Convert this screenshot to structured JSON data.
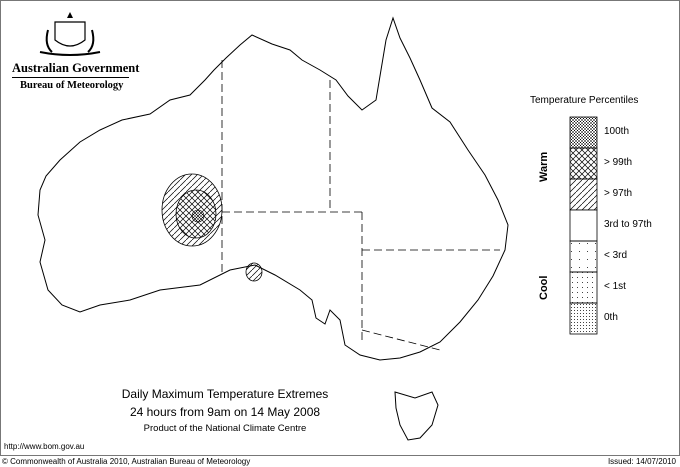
{
  "logo": {
    "line1": "Australian Government",
    "line2": "Bureau of Meteorology"
  },
  "legend": {
    "title": "Temperature Percentiles",
    "warm_label": "Warm",
    "cool_label": "Cool",
    "items": [
      {
        "label": "100th",
        "pattern": "dense-crosshatch"
      },
      {
        "label": "> 99th",
        "pattern": "crosshatch"
      },
      {
        "label": "> 97th",
        "pattern": "diagonal-hatch"
      },
      {
        "label": "3rd to 97th",
        "pattern": "blank"
      },
      {
        "label": "< 3rd",
        "pattern": "sparse-dots"
      },
      {
        "label": "< 1st",
        "pattern": "dots"
      },
      {
        "label": "0th",
        "pattern": "dense-dots"
      }
    ]
  },
  "caption": {
    "title": "Daily Maximum Temperature Extremes",
    "subtitle": "24 hours from 9am on 14 May 2008",
    "product": "Product of the National Climate Centre"
  },
  "url": "http://www.bom.gov.au",
  "footer": {
    "copyright": "© Commonwealth of Australia 2010, Australian Bureau of Meteorology",
    "issued": "Issued: 14/07/2010"
  }
}
